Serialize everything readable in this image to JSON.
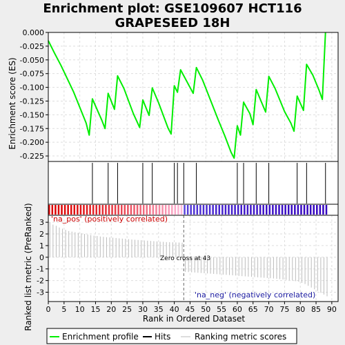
{
  "title_lines": [
    "Enrichment plot: GSE109607 HCT116",
    "GRAPESEED 18H"
  ],
  "es_axis_label": "Enrichment score (ES)",
  "rank_axis_label": "Ranked list metric (PreRanked)",
  "x_axis_label": "Rank in Ordered Dataset",
  "pos_label": "'na_pos' (positively correlated)",
  "neg_label": "'na_neg' (negatively correlated)",
  "zero_cross_label": "Zero cross at 43",
  "legend": [
    {
      "label": "Enrichment profile",
      "color": "#00ee00"
    },
    {
      "label": "Hits",
      "color": "#000000"
    },
    {
      "label": "Ranking metric scores",
      "color": "#bbbbbb"
    }
  ],
  "colors": {
    "profile": "#00ee00",
    "hits": "#000000",
    "metric": "#bbbbbb",
    "pos": "#dd0000",
    "neg": "#2200cc",
    "pos_label": "#cc0000",
    "neg_label": "#1a1aa0"
  },
  "chart_data": {
    "type": "line",
    "x_range": [
      0,
      92
    ],
    "x_ticks": [
      0,
      5,
      10,
      15,
      20,
      25,
      30,
      35,
      40,
      45,
      50,
      55,
      60,
      65,
      70,
      75,
      80,
      85,
      90
    ],
    "es_ylim": [
      -0.235,
      0
    ],
    "es_yticks": [
      0.0,
      -0.025,
      -0.05,
      -0.075,
      -0.1,
      -0.125,
      -0.15,
      -0.175,
      -0.2,
      -0.225
    ],
    "es_ytick_labels": [
      "0.000",
      "-0.025",
      "-0.050",
      "-0.075",
      "-0.100",
      "-0.125",
      "-0.150",
      "-0.175",
      "-0.200",
      "-0.225"
    ],
    "hits": [
      14,
      19,
      22,
      30,
      33,
      40,
      41,
      43,
      47,
      60,
      62,
      66,
      70,
      79,
      82,
      88
    ],
    "enrichment_profile": {
      "x": [
        0,
        2,
        4,
        8,
        12,
        13,
        14,
        17,
        18,
        19,
        21,
        22,
        24,
        27,
        29,
        30,
        32,
        33,
        35,
        38,
        39,
        40,
        41,
        42,
        46,
        47,
        49,
        54,
        56,
        58,
        59,
        60,
        61,
        62,
        64,
        65,
        66,
        69,
        70,
        72,
        75,
        77,
        78,
        79,
        81,
        82,
        84,
        86,
        87,
        88
      ],
      "y": [
        -0.015,
        -0.038,
        -0.06,
        -0.108,
        -0.165,
        -0.187,
        -0.121,
        -0.16,
        -0.175,
        -0.111,
        -0.14,
        -0.079,
        -0.102,
        -0.148,
        -0.173,
        -0.123,
        -0.151,
        -0.101,
        -0.128,
        -0.174,
        -0.185,
        -0.097,
        -0.109,
        -0.068,
        -0.111,
        -0.064,
        -0.087,
        -0.16,
        -0.188,
        -0.218,
        -0.229,
        -0.17,
        -0.187,
        -0.127,
        -0.148,
        -0.168,
        -0.104,
        -0.145,
        -0.08,
        -0.102,
        -0.144,
        -0.165,
        -0.18,
        -0.116,
        -0.142,
        -0.058,
        -0.078,
        -0.106,
        -0.122,
        0.0
      ]
    },
    "metric_ylim": [
      -3.8,
      3.6
    ],
    "metric_yticks": [
      3,
      2,
      1,
      0,
      -1,
      -2,
      -3
    ],
    "metric_scores": [
      3.0,
      2.8,
      2.7,
      2.55,
      2.45,
      2.35,
      2.25,
      2.2,
      2.15,
      2.1,
      2.05,
      2.0,
      1.95,
      1.9,
      1.85,
      1.82,
      1.78,
      1.75,
      1.72,
      1.7,
      1.68,
      1.65,
      1.62,
      1.6,
      1.58,
      1.55,
      1.52,
      1.5,
      1.48,
      1.46,
      1.44,
      1.42,
      1.4,
      1.38,
      1.36,
      1.34,
      1.32,
      1.3,
      1.29,
      1.28,
      1.27,
      1.26,
      1.25,
      -1.25,
      -1.27,
      -1.29,
      -1.31,
      -1.33,
      -1.35,
      -1.37,
      -1.39,
      -1.41,
      -1.43,
      -1.45,
      -1.47,
      -1.49,
      -1.51,
      -1.53,
      -1.55,
      -1.57,
      -1.6,
      -1.62,
      -1.64,
      -1.66,
      -1.68,
      -1.7,
      -1.72,
      -1.74,
      -1.76,
      -1.78,
      -1.8,
      -1.82,
      -1.85,
      -1.88,
      -1.91,
      -1.94,
      -1.97,
      -2.0,
      -2.05,
      -2.1,
      -2.2,
      -2.3,
      -2.45,
      -2.6,
      -2.75,
      -2.9,
      -3.05,
      -3.2,
      -3.35
    ],
    "zero_cross": 43
  }
}
